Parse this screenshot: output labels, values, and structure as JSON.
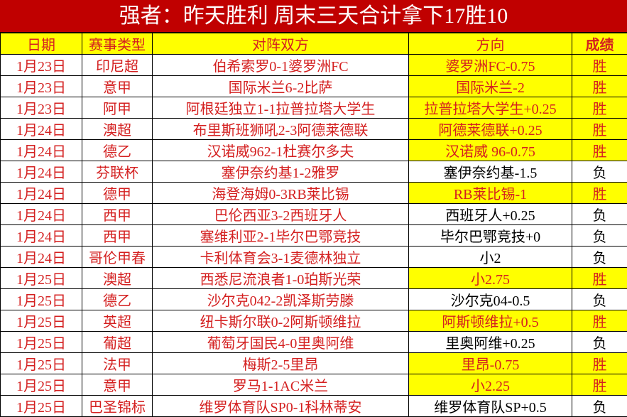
{
  "title": "强者：昨天胜利 周末三天合计拿下17胜10",
  "headers": {
    "date": "日期",
    "type": "赛事类型",
    "match": "对阵双方",
    "direction": "方向",
    "result": "成绩"
  },
  "colors": {
    "title_bg": "#c00000",
    "highlight": "#ffff00",
    "text_red": "#d42020",
    "text_black": "#000000"
  },
  "rows": [
    {
      "date": "1月23日",
      "type": "印尼超",
      "match": "伯希索罗0-1婆罗洲FC",
      "direction": "婆罗洲FC-0.75",
      "result": "胜",
      "highlight": true
    },
    {
      "date": "1月23日",
      "type": "意甲",
      "match": "国际米兰6-2比萨",
      "direction": "国际米兰-2",
      "result": "胜",
      "highlight": true
    },
    {
      "date": "1月23日",
      "type": "阿甲",
      "match": "阿根廷独立1-1拉普拉塔大学生",
      "direction": "拉普拉塔大学生+0.25",
      "result": "胜",
      "highlight": true
    },
    {
      "date": "1月24日",
      "type": "澳超",
      "match": "布里斯班狮吼2-3阿德莱德联",
      "direction": "阿德莱德联+0.25",
      "result": "胜",
      "highlight": true
    },
    {
      "date": "1月24日",
      "type": "德乙",
      "match": "汉诺威962-1杜赛尔多夫",
      "direction": "汉诺威 96-0.75",
      "result": "胜",
      "highlight": true
    },
    {
      "date": "1月24日",
      "type": "芬联杯",
      "match": "塞伊奈约基1-2雅罗",
      "direction": "塞伊奈约基-1.5",
      "result": "负",
      "highlight": false
    },
    {
      "date": "1月24日",
      "type": "德甲",
      "match": "海登海姆0-3RB莱比锡",
      "direction": "RB莱比锡-1",
      "result": "胜",
      "highlight": true
    },
    {
      "date": "1月24日",
      "type": "西甲",
      "match": "巴伦西亚3-2西班牙人",
      "direction": "西班牙人+0.25",
      "result": "负",
      "highlight": false
    },
    {
      "date": "1月24日",
      "type": "西甲",
      "match": "塞维利亚2-1毕尔巴鄂竞技",
      "direction": "毕尔巴鄂竞技+0",
      "result": "负",
      "highlight": false
    },
    {
      "date": "1月24日",
      "type": "哥伦甲春",
      "match": "卡利体育会3-1麦德林独立",
      "direction": "小2",
      "result": "负",
      "highlight": false
    },
    {
      "date": "1月25日",
      "type": "澳超",
      "match": "西悉尼流浪者1-0珀斯光荣",
      "direction": "小2.75",
      "result": "胜",
      "highlight": true
    },
    {
      "date": "1月25日",
      "type": "德乙",
      "match": "沙尔克042-2凯泽斯劳滕",
      "direction": "沙尔克04-0.5",
      "result": "负",
      "highlight": false
    },
    {
      "date": "1月25日",
      "type": "英超",
      "match": "纽卡斯尔联0-2阿斯顿维拉",
      "direction": "阿斯顿维拉+0.5",
      "result": "胜",
      "highlight": true
    },
    {
      "date": "1月25日",
      "type": "葡超",
      "match": "葡萄牙国民4-0里奥阿维",
      "direction": "里奥阿维+0.25",
      "result": "负",
      "highlight": false
    },
    {
      "date": "1月25日",
      "type": "法甲",
      "match": "梅斯2-5里昂",
      "direction": "里昂-0.75",
      "result": "胜",
      "highlight": true
    },
    {
      "date": "1月25日",
      "type": "意甲",
      "match": "罗马1-1AC米兰",
      "direction": "小2.25",
      "result": "胜",
      "highlight": true
    },
    {
      "date": "1月25日",
      "type": "巴圣锦标",
      "match": "维罗体育队SP0-1科林蒂安",
      "direction": "维罗体育队SP+0.5",
      "result": "负",
      "highlight": false
    }
  ]
}
